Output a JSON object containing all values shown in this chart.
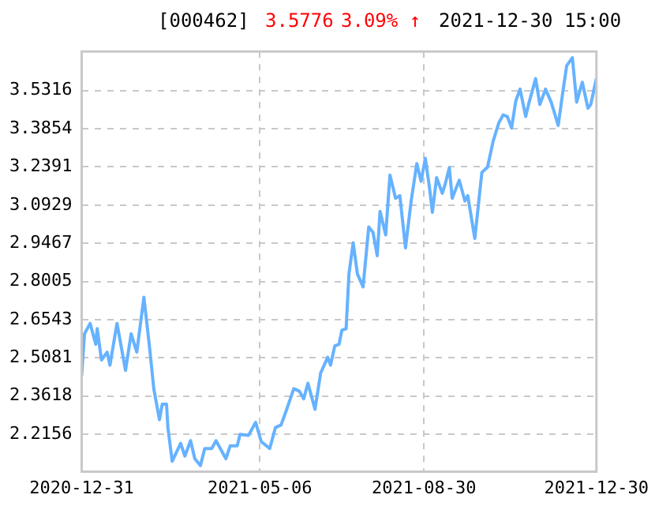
{
  "chart_data": {
    "type": "line",
    "title": "[000462]",
    "annotations": [
      "3.5776",
      "3.09% ↑",
      "2021-12-30 15:00"
    ],
    "x": [
      "2020-12-31",
      "2021-01-02",
      "2021-01-06",
      "2021-01-10",
      "2021-01-11",
      "2021-01-14",
      "2021-01-18",
      "2021-01-20",
      "2021-01-25",
      "2021-01-31",
      "2021-02-04",
      "2021-02-08",
      "2021-02-13",
      "2021-02-17",
      "2021-02-20",
      "2021-02-24",
      "2021-02-26",
      "2021-03-01",
      "2021-03-02",
      "2021-03-05",
      "2021-03-11",
      "2021-03-14",
      "2021-03-18",
      "2021-03-21",
      "2021-03-25",
      "2021-03-28",
      "2021-04-02",
      "2021-04-05",
      "2021-04-12",
      "2021-04-15",
      "2021-04-20",
      "2021-04-22",
      "2021-04-28",
      "2021-05-03",
      "2021-05-07",
      "2021-05-13",
      "2021-05-17",
      "2021-05-21",
      "2021-05-25",
      "2021-05-30",
      "2021-06-03",
      "2021-06-06",
      "2021-06-09",
      "2021-06-11",
      "2021-06-14",
      "2021-06-18",
      "2021-06-23",
      "2021-06-25",
      "2021-06-28",
      "2021-07-01",
      "2021-07-03",
      "2021-07-06",
      "2021-07-08",
      "2021-07-11",
      "2021-07-14",
      "2021-07-18",
      "2021-07-22",
      "2021-07-25",
      "2021-07-28",
      "2021-07-30",
      "2021-08-03",
      "2021-08-06",
      "2021-08-10",
      "2021-08-13",
      "2021-08-17",
      "2021-08-21",
      "2021-08-25",
      "2021-08-28",
      "2021-08-31",
      "2021-09-03",
      "2021-09-05",
      "2021-09-08",
      "2021-09-12",
      "2021-09-14",
      "2021-09-17",
      "2021-09-19",
      "2021-09-24",
      "2021-09-28",
      "2021-09-30",
      "2021-10-05",
      "2021-10-10",
      "2021-10-14",
      "2021-10-18",
      "2021-10-22",
      "2021-10-25",
      "2021-10-28",
      "2021-10-31",
      "2021-11-03",
      "2021-11-06",
      "2021-11-10",
      "2021-11-12",
      "2021-11-17",
      "2021-11-20",
      "2021-11-24",
      "2021-11-28",
      "2021-12-03",
      "2021-12-06",
      "2021-12-09",
      "2021-12-13",
      "2021-12-16",
      "2021-12-20",
      "2021-12-24",
      "2021-12-26",
      "2021-12-30"
    ],
    "series": [
      {
        "color": "#66b2ff",
        "values": [
          2.44,
          2.6,
          2.64,
          2.56,
          2.62,
          2.5,
          2.53,
          2.48,
          2.64,
          2.46,
          2.6,
          2.53,
          2.74,
          2.55,
          2.39,
          2.271,
          2.331,
          2.331,
          2.241,
          2.112,
          2.181,
          2.132,
          2.191,
          2.122,
          2.096,
          2.161,
          2.161,
          2.191,
          2.122,
          2.171,
          2.171,
          2.215,
          2.211,
          2.261,
          2.187,
          2.161,
          2.241,
          2.251,
          2.311,
          2.39,
          2.38,
          2.351,
          2.411,
          2.371,
          2.311,
          2.45,
          2.51,
          2.48,
          2.554,
          2.56,
          2.614,
          2.62,
          2.829,
          2.949,
          2.829,
          2.78,
          3.009,
          2.989,
          2.899,
          3.069,
          2.979,
          3.208,
          3.119,
          3.129,
          2.929,
          3.109,
          3.252,
          3.184,
          3.272,
          3.158,
          3.065,
          3.198,
          3.138,
          3.172,
          3.236,
          3.119,
          3.188,
          3.109,
          3.129,
          2.965,
          3.218,
          3.238,
          3.338,
          3.408,
          3.438,
          3.432,
          3.388,
          3.492,
          3.537,
          3.432,
          3.478,
          3.577,
          3.478,
          3.537,
          3.487,
          3.398,
          3.517,
          3.627,
          3.657,
          3.487,
          3.563,
          3.464,
          3.478,
          3.578
        ]
      }
    ],
    "xlim": [
      "2020-12-31",
      "2021-12-30"
    ],
    "xticks": [
      {
        "value": "2020-12-31",
        "label": "2020-12-31"
      },
      {
        "value": "2021-05-06",
        "label": "2021-05-06"
      },
      {
        "value": "2021-08-30",
        "label": "2021-08-30"
      },
      {
        "value": "2021-12-30",
        "label": "2021-12-30"
      }
    ],
    "ylim": [
      2.072,
      3.681
    ],
    "yticks": [
      2.2156,
      2.3618,
      2.5081,
      2.6543,
      2.8005,
      2.9467,
      3.0929,
      3.2391,
      3.3854,
      3.5316
    ],
    "grid": true,
    "line_style": "solid",
    "marker": "none"
  }
}
